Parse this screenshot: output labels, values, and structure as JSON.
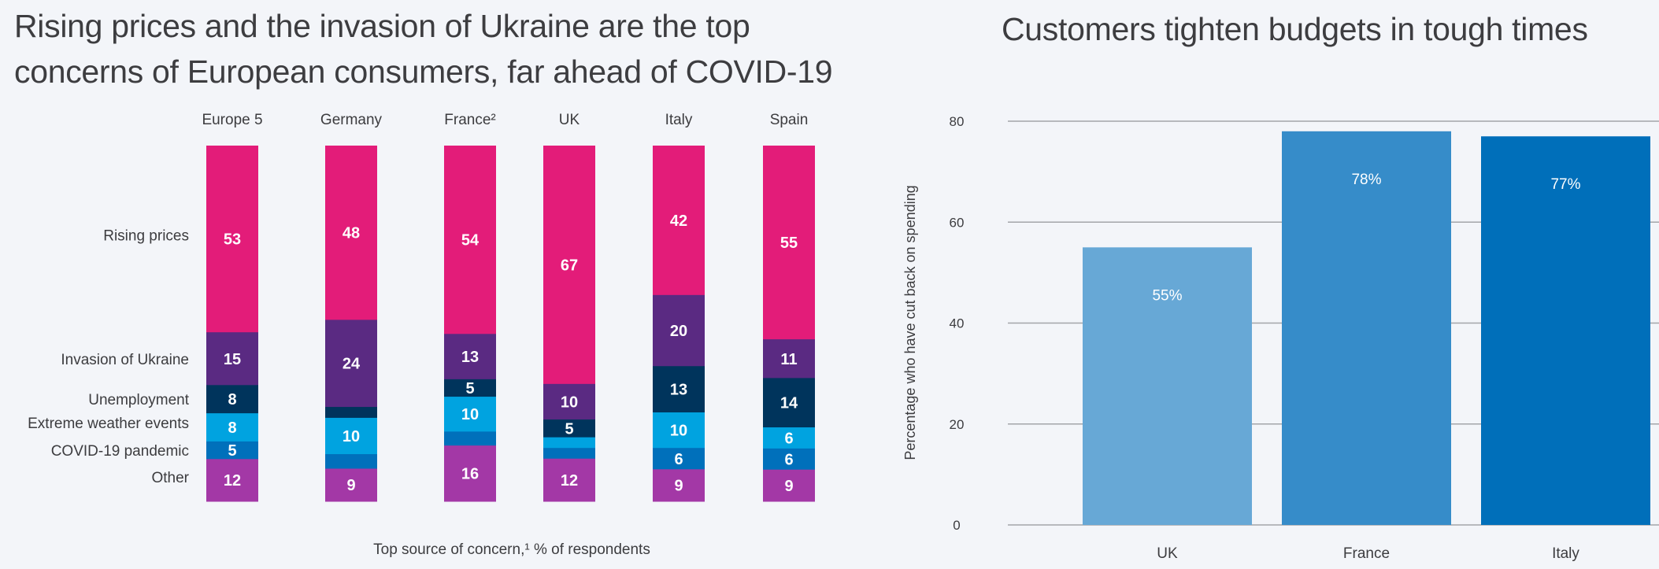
{
  "chart_data": [
    {
      "type": "bar",
      "stacked": true,
      "orientation": "vertical",
      "title": "Rising prices and the invasion of Ukraine are the top concerns of European consumers, far ahead of COVID-19",
      "xlabel": "Top source of concern,¹ % of respondents",
      "ylabel": "",
      "categories": [
        "Europe 5",
        "Germany",
        "France²",
        "UK",
        "Italy",
        "Spain"
      ],
      "series": [
        {
          "name": "Rising prices",
          "color": "#e31c79",
          "values": [
            53,
            48,
            54,
            67,
            42,
            55
          ],
          "labels": [
            "53",
            "48",
            "54",
            "67",
            "42",
            "55"
          ]
        },
        {
          "name": "Invasion of Ukraine",
          "color": "#5a2a82",
          "values": [
            15,
            24,
            13,
            10,
            20,
            11
          ],
          "labels": [
            "15",
            "24",
            "13",
            "10",
            "20",
            "11"
          ]
        },
        {
          "name": "Unemployment",
          "color": "#00345c",
          "values": [
            8,
            3,
            5,
            5,
            13,
            14
          ],
          "labels": [
            "8",
            "",
            "5",
            "5",
            "13",
            "14"
          ]
        },
        {
          "name": "Extreme weather events",
          "color": "#00a3e0",
          "values": [
            8,
            10,
            10,
            3,
            10,
            6
          ],
          "labels": [
            "8",
            "10",
            "10",
            "",
            "10",
            "6"
          ]
        },
        {
          "name": "COVID-19 pandemic",
          "color": "#0070bb",
          "values": [
            5,
            4,
            4,
            3,
            6,
            6
          ],
          "labels": [
            "5",
            "",
            "",
            "",
            "6",
            "6"
          ]
        },
        {
          "name": "Other",
          "color": "#a338a6",
          "values": [
            12,
            9,
            16,
            12,
            9,
            9
          ],
          "labels": [
            "12",
            "9",
            "16",
            "12",
            "9",
            "9"
          ]
        }
      ],
      "legend": "left-side row labels",
      "grid": false
    },
    {
      "type": "bar",
      "title": "Customers tighten budgets in tough times",
      "xlabel": "",
      "ylabel": "Percentage who have cut back on spending",
      "categories": [
        "UK",
        "France",
        "Italy"
      ],
      "values": [
        55,
        78,
        77
      ],
      "data_labels": [
        "55%",
        "78%",
        "77%"
      ],
      "colors": [
        "#67a8d6",
        "#368cc9",
        "#006fba"
      ],
      "ylim": [
        0,
        80
      ],
      "yticks": [
        0,
        20,
        40,
        60,
        80
      ],
      "grid": true
    }
  ]
}
